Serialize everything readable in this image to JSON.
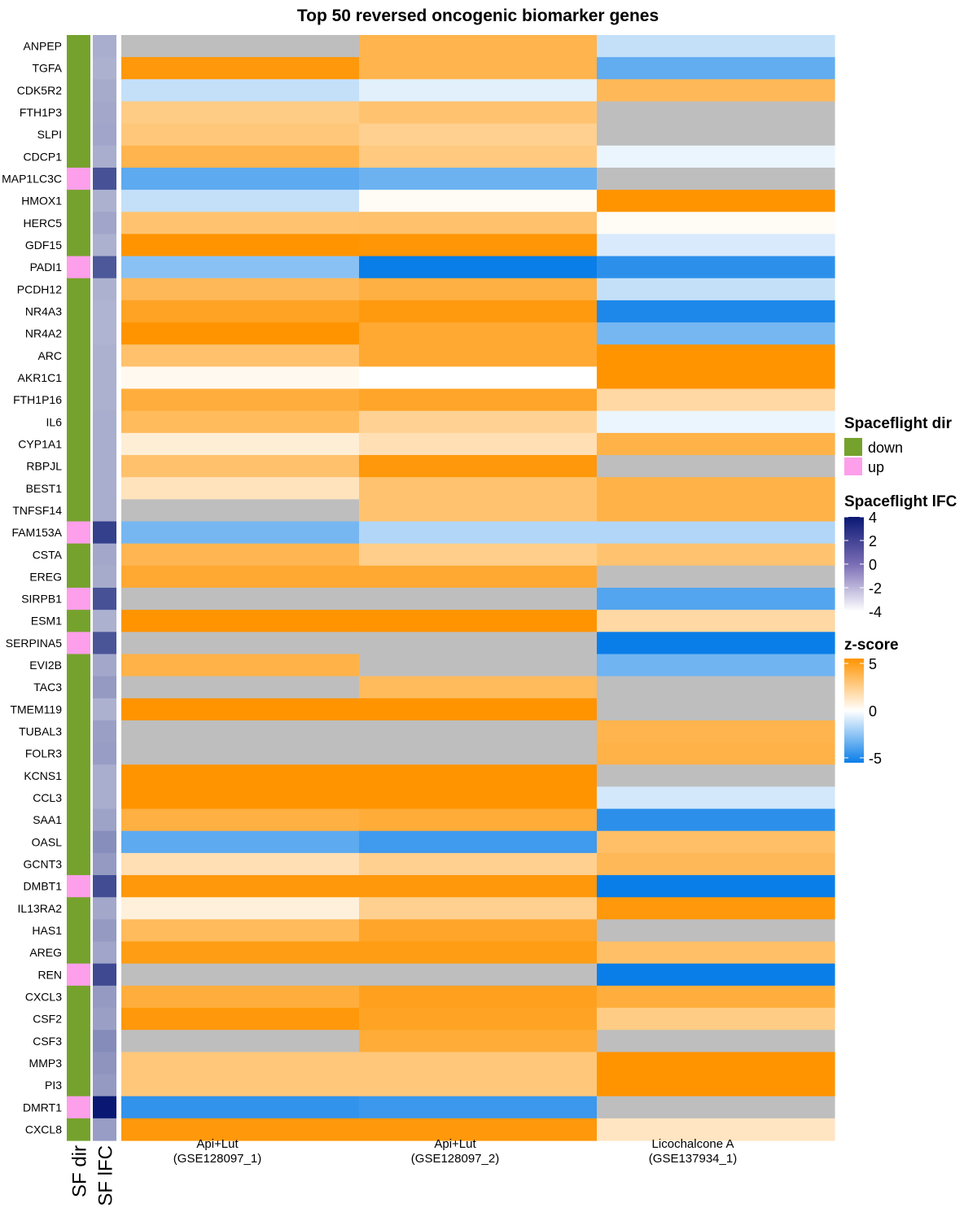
{
  "chart_data": {
    "type": "heatmap",
    "title": "Top 50 reversed oncogenic biomarker genes",
    "genes": [
      "ANPEP",
      "TGFA",
      "CDK5R2",
      "FTH1P3",
      "SLPI",
      "CDCP1",
      "MAP1LC3C",
      "HMOX1",
      "HERC5",
      "GDF15",
      "PADI1",
      "PCDH12",
      "NR4A3",
      "NR4A2",
      "ARC",
      "AKR1C1",
      "FTH1P16",
      "IL6",
      "CYP1A1",
      "RBPJL",
      "BEST1",
      "TNFSF14",
      "FAM153A",
      "CSTA",
      "EREG",
      "SIRPB1",
      "ESM1",
      "SERPINA5",
      "EVI2B",
      "TAC3",
      "TMEM119",
      "TUBAL3",
      "FOLR3",
      "KCNS1",
      "CCL3",
      "SAA1",
      "OASL",
      "GCNT3",
      "DMBT1",
      "IL13RA2",
      "HAS1",
      "AREG",
      "REN",
      "CXCL3",
      "CSF2",
      "CSF3",
      "MMP3",
      "PI3",
      "DMRT1",
      "CXCL8"
    ],
    "sf_dir": [
      "down",
      "down",
      "down",
      "down",
      "down",
      "down",
      "up",
      "down",
      "down",
      "down",
      "up",
      "down",
      "down",
      "down",
      "down",
      "down",
      "down",
      "down",
      "down",
      "down",
      "down",
      "down",
      "up",
      "down",
      "down",
      "up",
      "down",
      "up",
      "down",
      "down",
      "down",
      "down",
      "down",
      "down",
      "down",
      "down",
      "down",
      "down",
      "up",
      "down",
      "down",
      "down",
      "up",
      "down",
      "down",
      "down",
      "down",
      "down",
      "up",
      "down"
    ],
    "sf_lfc": [
      -1.2,
      -1.3,
      -1.1,
      -1.0,
      -0.9,
      -1.2,
      2.0,
      -1.3,
      -0.9,
      -1.3,
      1.8,
      -1.3,
      -1.4,
      -1.4,
      -1.3,
      -1.3,
      -1.3,
      -1.2,
      -1.2,
      -1.2,
      -1.2,
      -1.2,
      2.6,
      -1.0,
      -1.1,
      2.0,
      -1.3,
      1.9,
      -1.0,
      -0.5,
      -1.3,
      -0.7,
      -0.6,
      -1.2,
      -1.2,
      -0.8,
      -0.1,
      -0.5,
      2.2,
      -1.0,
      -0.5,
      -0.9,
      2.3,
      -0.5,
      -0.7,
      0.0,
      -0.3,
      -0.5,
      4.0,
      -0.6
    ],
    "columns": [
      {
        "line1": "Api+Lut",
        "line2": "(GSE128097_1)"
      },
      {
        "line1": "Api+Lut",
        "line2": "(GSE128097_2)"
      },
      {
        "line1": "Licochalcone A",
        "line2": "(GSE137934_1)"
      }
    ],
    "zscores": [
      [
        null,
        3.5,
        -1.2
      ],
      [
        4.8,
        3.5,
        -3.2
      ],
      [
        -1.2,
        -0.6,
        3.3
      ],
      [
        2.4,
        2.8,
        null
      ],
      [
        2.6,
        2.2,
        null
      ],
      [
        3.5,
        2.5,
        -0.4
      ],
      [
        -3.3,
        -3.0,
        null
      ],
      [
        -1.2,
        0.2,
        5.0
      ],
      [
        2.8,
        2.9,
        0.2
      ],
      [
        5.0,
        4.9,
        -0.8
      ],
      [
        -2.4,
        -5.0,
        -4.3
      ],
      [
        3.3,
        3.7,
        -1.2
      ],
      [
        4.3,
        4.7,
        -4.6
      ],
      [
        5.0,
        4.0,
        -2.8
      ],
      [
        2.9,
        4.0,
        5.0
      ],
      [
        0.3,
        0.0,
        5.0
      ],
      [
        3.8,
        4.2,
        1.8
      ],
      [
        3.2,
        2.1,
        -0.4
      ],
      [
        0.8,
        1.5,
        3.6
      ],
      [
        2.9,
        4.8,
        null
      ],
      [
        1.3,
        2.8,
        3.6
      ],
      [
        null,
        2.8,
        3.6
      ],
      [
        -2.8,
        -1.6,
        -1.6
      ],
      [
        3.4,
        2.3,
        2.8
      ],
      [
        4.0,
        4.0,
        null
      ],
      [
        null,
        null,
        -3.5
      ],
      [
        5.0,
        5.0,
        1.8
      ],
      [
        null,
        null,
        -5.0
      ],
      [
        3.6,
        null,
        -2.9
      ],
      [
        null,
        3.2,
        null
      ],
      [
        5.0,
        5.0,
        null
      ],
      [
        null,
        null,
        3.5
      ],
      [
        null,
        null,
        3.6
      ],
      [
        5.0,
        5.0,
        null
      ],
      [
        5.0,
        5.0,
        -0.9
      ],
      [
        3.7,
        3.9,
        -4.3
      ],
      [
        -3.3,
        -3.9,
        3.0
      ],
      [
        1.5,
        2.2,
        3.3
      ],
      [
        4.8,
        4.8,
        -5.0
      ],
      [
        0.7,
        2.2,
        4.8
      ],
      [
        3.2,
        4.2,
        null
      ],
      [
        4.6,
        4.6,
        3.0
      ],
      [
        null,
        null,
        -5.0
      ],
      [
        3.8,
        4.4,
        3.8
      ],
      [
        4.8,
        4.3,
        2.4
      ],
      [
        null,
        3.9,
        null
      ],
      [
        2.6,
        2.6,
        5.0
      ],
      [
        2.6,
        2.6,
        5.0
      ],
      [
        -4.2,
        -4.0,
        null
      ],
      [
        4.8,
        4.8,
        1.2
      ]
    ],
    "zlim": [
      -5,
      5
    ],
    "lfc_lim": [
      -4,
      4
    ],
    "annotation_labels": [
      "SF dir",
      "SF lFC"
    ],
    "legends": {
      "dir": {
        "title": "Spaceflight dir",
        "items": [
          {
            "label": "down",
            "color": "#75a22d"
          },
          {
            "label": "up",
            "color": "#fd9fea"
          }
        ]
      },
      "lfc": {
        "title": "Spaceflight lFC",
        "ticks": [
          "4",
          "2",
          "0",
          "-2",
          "-4"
        ],
        "tick_values": [
          4,
          2,
          0,
          -2,
          -4
        ]
      },
      "z": {
        "title": "z-score",
        "ticks": [
          "5",
          "0",
          "-5"
        ],
        "tick_values": [
          5,
          0,
          -5
        ]
      }
    }
  },
  "colors": {
    "na": "#bebebe",
    "z_low": "#0a7ee8",
    "z_mid": "#ffffff",
    "z_high": "#ff9400",
    "lfc_low": "#ffffff",
    "lfc_high": "#0a1873",
    "dir_down": "#75a22d",
    "dir_up": "#fd9fea"
  }
}
